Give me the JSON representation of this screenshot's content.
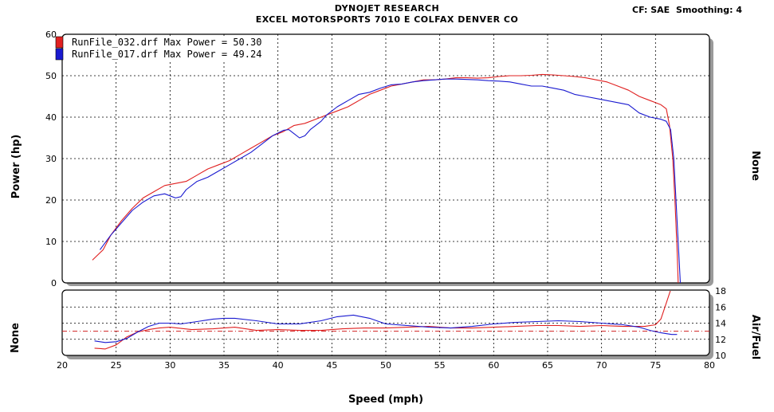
{
  "header": {
    "line1": "DYNOJET RESEARCH",
    "line2": "EXCEL MOTORSPORTS 7010 E COLFAX DENVER CO",
    "cf": "CF: SAE",
    "smoothing": "Smoothing: 4"
  },
  "chart_data": [
    {
      "type": "line",
      "ylabel": "Power (hp)",
      "right_label": "None",
      "xlim": [
        20,
        80
      ],
      "ylim": [
        0,
        60
      ],
      "xticks": [
        "20",
        "25",
        "30",
        "35",
        "40",
        "45",
        "50",
        "55",
        "60",
        "65",
        "70",
        "75",
        "80"
      ],
      "yticks": [
        "0",
        "10",
        "20",
        "30",
        "40",
        "50",
        "60"
      ],
      "grid": true,
      "legend": "top-left",
      "series": [
        {
          "name": "RunFile_032.drf Max Power = 50.30",
          "color": "#e02020",
          "x": [
            22.8,
            23.8,
            24.5,
            25.5,
            26.5,
            27.5,
            28.5,
            29.5,
            30.5,
            31.5,
            32.5,
            33.5,
            34.5,
            35.5,
            36.5,
            37.5,
            38.5,
            39.5,
            40.5,
            41.5,
            42.5,
            43.5,
            44.5,
            45.5,
            46.5,
            47.5,
            48.5,
            49.5,
            50.5,
            51.5,
            52.5,
            53.5,
            54.5,
            55.5,
            56.5,
            57.5,
            58.5,
            59.5,
            60.5,
            61.5,
            62.5,
            63.5,
            64.5,
            65.5,
            66.5,
            67.5,
            68.5,
            69.5,
            70.5,
            71.5,
            72.5,
            73.5,
            74.5,
            75.5,
            76.0,
            76.3,
            76.6,
            76.8,
            77.0,
            77.1
          ],
          "y": [
            5.5,
            8.0,
            11.5,
            15.0,
            18.0,
            20.5,
            22.0,
            23.5,
            24.0,
            24.5,
            26.0,
            27.5,
            28.5,
            29.5,
            31.0,
            32.5,
            34.0,
            35.5,
            36.5,
            38.0,
            38.5,
            39.5,
            40.5,
            41.5,
            42.5,
            44.0,
            45.5,
            46.5,
            47.5,
            48.0,
            48.5,
            49.0,
            49.0,
            49.2,
            49.5,
            49.5,
            49.4,
            49.5,
            49.8,
            50.0,
            50.0,
            50.1,
            50.3,
            50.2,
            50.0,
            49.8,
            49.5,
            49.0,
            48.5,
            47.5,
            46.5,
            45.0,
            44.0,
            43.0,
            42.0,
            38.0,
            30.0,
            20.0,
            8.0,
            0.0
          ]
        },
        {
          "name": "RunFile_017.drf Max Power = 49.24",
          "color": "#1a1ad0",
          "x": [
            23.5,
            24.5,
            25.5,
            26.5,
            27.5,
            28.5,
            29.5,
            30.5,
            31.0,
            31.5,
            32.5,
            33.5,
            34.5,
            35.5,
            36.5,
            37.5,
            38.5,
            39.5,
            40.5,
            41.0,
            41.5,
            42.0,
            42.5,
            43.0,
            43.5,
            44.0,
            44.5,
            45.5,
            46.5,
            47.5,
            48.5,
            49.5,
            50.5,
            51.5,
            52.5,
            53.5,
            54.5,
            55.5,
            56.5,
            57.5,
            58.5,
            59.5,
            60.5,
            61.5,
            62.5,
            63.5,
            64.5,
            65.5,
            66.5,
            67.5,
            68.5,
            69.5,
            70.5,
            71.5,
            72.5,
            73.5,
            74.5,
            75.5,
            76.0,
            76.4,
            76.7,
            77.0,
            77.3
          ],
          "y": [
            8.0,
            11.5,
            14.5,
            17.5,
            19.5,
            21.0,
            21.5,
            20.5,
            20.8,
            22.5,
            24.5,
            25.5,
            27.0,
            28.5,
            30.0,
            31.5,
            33.5,
            35.5,
            36.8,
            37.0,
            36.0,
            35.0,
            35.5,
            37.0,
            38.0,
            39.0,
            40.5,
            42.5,
            44.0,
            45.5,
            46.0,
            47.0,
            47.8,
            48.0,
            48.5,
            48.8,
            49.0,
            49.2,
            49.2,
            49.1,
            49.0,
            48.8,
            48.7,
            48.5,
            48.0,
            47.5,
            47.5,
            47.0,
            46.5,
            45.5,
            45.0,
            44.5,
            44.0,
            43.5,
            43.0,
            41.0,
            40.0,
            39.5,
            39.0,
            37.0,
            30.0,
            15.0,
            0.0
          ]
        }
      ]
    },
    {
      "type": "line",
      "xlabel": "Speed (mph)",
      "ylabel": "None",
      "right_label": "Air/Fuel",
      "xlim": [
        20,
        80
      ],
      "ylim": [
        10,
        18
      ],
      "xticks": [
        "20",
        "25",
        "30",
        "35",
        "40",
        "45",
        "50",
        "55",
        "60",
        "65",
        "70",
        "75",
        "80"
      ],
      "yticks": [
        "10",
        "12",
        "14",
        "16",
        "18"
      ],
      "grid": true,
      "reference_line": 13.0,
      "series": [
        {
          "name": "RunFile_032.drf",
          "color": "#e02020",
          "x": [
            23.0,
            24.0,
            25.0,
            26.0,
            27.0,
            28.0,
            29.0,
            30.0,
            32.0,
            34.0,
            36.0,
            38.0,
            40.0,
            42.0,
            44.0,
            46.0,
            48.0,
            50.0,
            52.0,
            54.0,
            56.0,
            58.0,
            60.0,
            62.0,
            64.0,
            66.0,
            68.0,
            70.0,
            72.0,
            74.0,
            75.0,
            75.5,
            76.0,
            76.5,
            77.0
          ],
          "y": [
            10.9,
            10.8,
            11.3,
            12.3,
            12.9,
            13.2,
            13.4,
            13.5,
            13.2,
            13.3,
            13.5,
            13.1,
            13.2,
            13.1,
            13.1,
            13.3,
            13.4,
            13.4,
            13.5,
            13.6,
            13.4,
            13.4,
            13.5,
            13.6,
            13.7,
            13.7,
            13.6,
            13.7,
            13.6,
            13.6,
            13.8,
            14.5,
            16.5,
            18.5,
            19.0
          ]
        },
        {
          "name": "RunFile_017.drf",
          "color": "#1a1ad0",
          "x": [
            23.0,
            24.0,
            25.0,
            26.0,
            27.0,
            28.0,
            29.0,
            30.0,
            31.0,
            32.0,
            33.0,
            34.0,
            35.0,
            36.0,
            38.0,
            40.0,
            42.0,
            44.0,
            45.5,
            47.0,
            48.5,
            50.0,
            52.0,
            54.0,
            56.0,
            58.0,
            60.0,
            62.0,
            64.0,
            66.0,
            68.0,
            70.0,
            72.0,
            73.5,
            74.5,
            75.5,
            76.5,
            77.0
          ],
          "y": [
            11.8,
            11.6,
            11.7,
            12.1,
            12.9,
            13.6,
            14.0,
            14.0,
            13.9,
            14.1,
            14.3,
            14.5,
            14.6,
            14.6,
            14.3,
            13.9,
            13.9,
            14.3,
            14.8,
            15.0,
            14.6,
            13.9,
            13.7,
            13.5,
            13.4,
            13.6,
            13.9,
            14.1,
            14.2,
            14.3,
            14.2,
            14.0,
            13.8,
            13.5,
            13.1,
            12.8,
            12.6,
            12.6
          ]
        }
      ]
    }
  ]
}
